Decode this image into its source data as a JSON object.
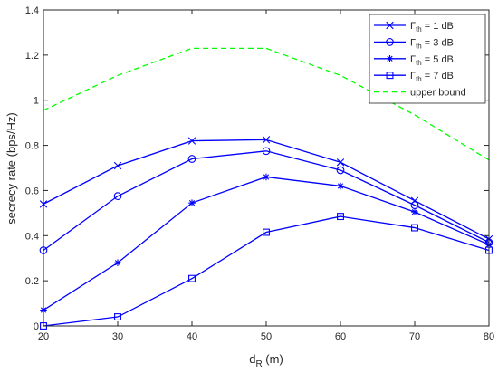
{
  "chart_data": {
    "type": "line",
    "xlabel": "d",
    "xlabel_sub": "R",
    "xlabel_unit": " (m)",
    "ylabel": "secrecy rate (bps/Hz)",
    "xlim": [
      20,
      80
    ],
    "ylim": [
      0,
      1.4
    ],
    "xticks": [
      "20",
      "30",
      "40",
      "50",
      "60",
      "70",
      "80"
    ],
    "yticks": [
      "0",
      "0.2",
      "0.4",
      "0.6",
      "0.8",
      "1",
      "1.2",
      "1.4"
    ],
    "grid": false,
    "legend_position": "top-right",
    "x": [
      20,
      30,
      40,
      50,
      60,
      70,
      80
    ],
    "series": [
      {
        "name": "Γ",
        "name_sub": "th",
        "name_rest": " = 1 dB",
        "marker": "x",
        "color": "#0000ff",
        "dash": "solid",
        "values": [
          0.54,
          0.71,
          0.82,
          0.825,
          0.725,
          0.555,
          0.385
        ]
      },
      {
        "name": "Γ",
        "name_sub": "th",
        "name_rest": " = 3 dB",
        "marker": "o",
        "color": "#0000ff",
        "dash": "solid",
        "values": [
          0.335,
          0.575,
          0.74,
          0.775,
          0.69,
          0.535,
          0.37
        ]
      },
      {
        "name": "Γ",
        "name_sub": "th",
        "name_rest": " = 5 dB",
        "marker": "*",
        "color": "#0000ff",
        "dash": "solid",
        "values": [
          0.07,
          0.28,
          0.545,
          0.66,
          0.62,
          0.505,
          0.36
        ]
      },
      {
        "name": "Γ",
        "name_sub": "th",
        "name_rest": " = 7 dB",
        "marker": "s",
        "color": "#0000ff",
        "dash": "solid",
        "values": [
          0.0,
          0.04,
          0.21,
          0.415,
          0.485,
          0.435,
          0.335
        ]
      },
      {
        "name": "upper bound",
        "name_sub": "",
        "name_rest": "",
        "marker": "none",
        "color": "#00ff00",
        "dash": "dashed",
        "values": [
          0.955,
          1.11,
          1.23,
          1.23,
          1.11,
          0.935,
          0.735
        ]
      }
    ]
  }
}
